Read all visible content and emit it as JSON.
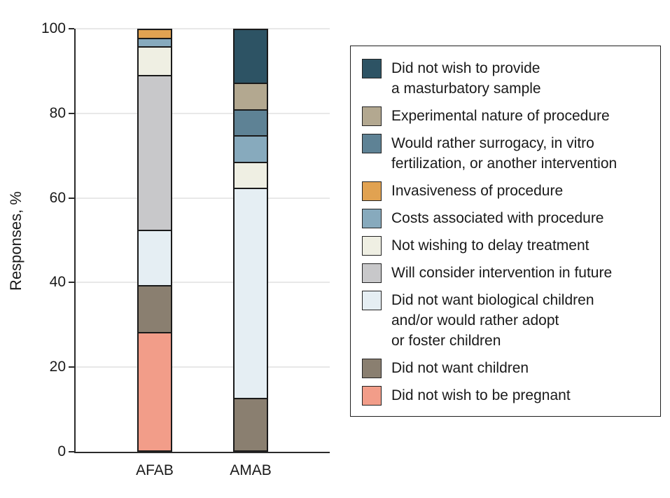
{
  "figure": {
    "ylabel": "Responses, %",
    "x_categories": [
      "AFAB",
      "AMAB"
    ],
    "y_ticks": [
      0,
      20,
      40,
      60,
      80,
      100
    ]
  },
  "chart_data": {
    "type": "bar",
    "stacked": true,
    "title": "",
    "xlabel": "",
    "ylabel": "Responses, %",
    "categories": [
      "AFAB",
      "AMAB"
    ],
    "ylim": [
      0,
      100
    ],
    "grid": "horizontal",
    "legend_position": "right",
    "colors": {
      "axis": "#2b2b2b",
      "grid": "#e8e8e8",
      "segment_border": "#1a1a1a"
    },
    "series": [
      {
        "name": "Did not wish to provide a masturbatory sample",
        "color": "#2d5364",
        "values": [
          0,
          12.5
        ]
      },
      {
        "name": "Experimental nature of procedure",
        "color": "#b3a890",
        "values": [
          0,
          6.25
        ]
      },
      {
        "name": "Would rather surrogacy, in vitro fertilization, or another intervention",
        "color": "#5e8295",
        "values": [
          0,
          6.25
        ]
      },
      {
        "name": "Invasiveness of procedure",
        "color": "#e1a251",
        "values": [
          1.9,
          0
        ]
      },
      {
        "name": "Costs associated with procedure",
        "color": "#87aabd",
        "values": [
          2.0,
          6.25
        ]
      },
      {
        "name": "Not wishing to delay treatment",
        "color": "#efefe3",
        "values": [
          6.8,
          6.25
        ]
      },
      {
        "name": "Will consider intervention in future",
        "color": "#c8c8ca",
        "values": [
          36.8,
          0
        ]
      },
      {
        "name": "Did not want biological children and/or would rather adopt or foster children",
        "color": "#e5eef3",
        "values": [
          13.2,
          50
        ]
      },
      {
        "name": "Did not want children",
        "color": "#8a7f70",
        "values": [
          11.1,
          12.5
        ]
      },
      {
        "name": "Did not wish to be pregnant",
        "color": "#f29d89",
        "values": [
          28.2,
          0
        ]
      }
    ]
  },
  "legend": {
    "items": [
      {
        "label": "Did not wish to provide\na masturbatory sample"
      },
      {
        "label": "Experimental nature of procedure"
      },
      {
        "label": "Would rather surrogacy, in vitro\nfertilization, or another intervention"
      },
      {
        "label": "Invasiveness of procedure"
      },
      {
        "label": "Costs associated with procedure"
      },
      {
        "label": "Not wishing to delay treatment"
      },
      {
        "label": "Will consider intervention in future"
      },
      {
        "label": "Did not want biological children\nand/or would rather adopt\nor foster children"
      },
      {
        "label": "Did not want children"
      },
      {
        "label": "Did not wish to be pregnant"
      }
    ]
  }
}
